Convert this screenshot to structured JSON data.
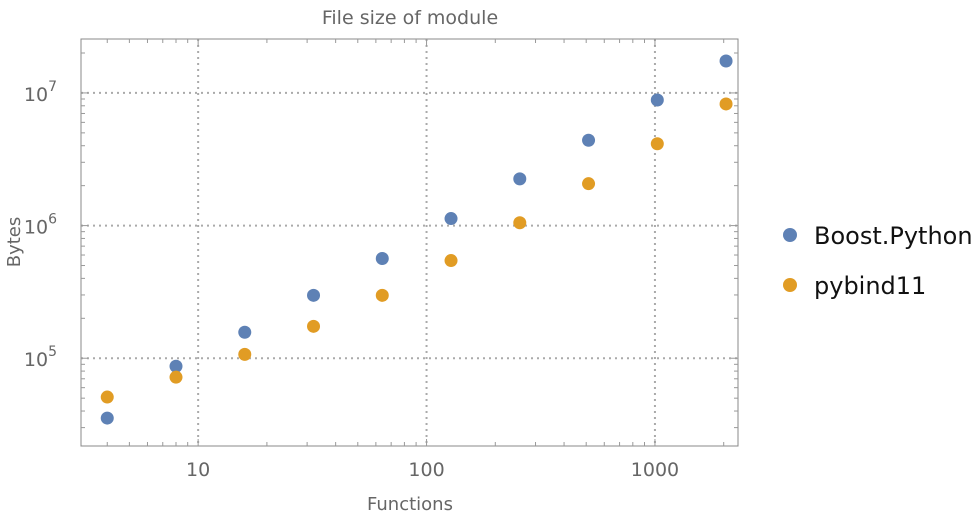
{
  "chart_data": {
    "type": "scatter",
    "title": "File size of module",
    "xlabel": "Functions",
    "ylabel": "Bytes",
    "xscale": "log",
    "yscale": "log",
    "xlim": [
      3.07,
      2310
    ],
    "ylim": [
      21800,
      25500000
    ],
    "grid": true,
    "legend_placement": "right",
    "x_ticks": [
      {
        "value": 10,
        "label": "10"
      },
      {
        "value": 100,
        "label": "100"
      },
      {
        "value": 1000,
        "label": "1000"
      }
    ],
    "y_ticks": [
      {
        "value": 100000,
        "base": "10",
        "exp": "5"
      },
      {
        "value": 1000000,
        "base": "10",
        "exp": "6"
      },
      {
        "value": 10000000,
        "base": "10",
        "exp": "7"
      }
    ],
    "x": [
      4,
      8,
      16,
      32,
      64,
      128,
      256,
      512,
      1024,
      2048
    ],
    "series": [
      {
        "name": "Boost.Python",
        "color": "#5E81B5",
        "values": [
          35400,
          87000,
          157000,
          298000,
          565000,
          1130000,
          2250000,
          4400000,
          8850000,
          17400000
        ]
      },
      {
        "name": "pybind11",
        "color": "#E19C24",
        "values": [
          51000,
          72000,
          107000,
          174000,
          298000,
          545000,
          1050000,
          2070000,
          4140000,
          8260000
        ]
      }
    ]
  }
}
